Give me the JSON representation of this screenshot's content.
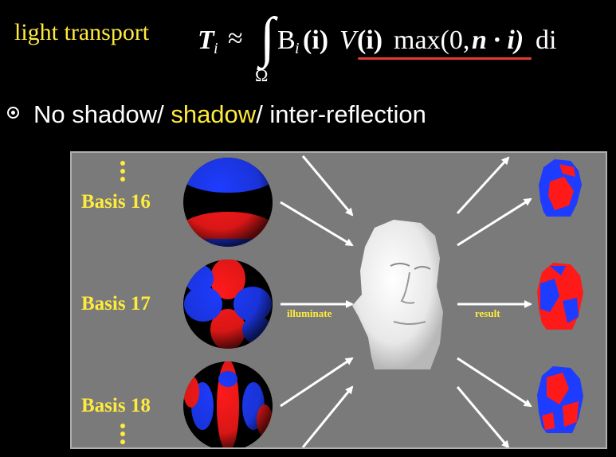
{
  "header": {
    "label": "light transport",
    "formula": {
      "lhs": "T",
      "lhs_sub": "i",
      "approx": "≈",
      "integral": "∫",
      "domain": "Ω",
      "b": "B",
      "b_sub": "i",
      "i_arg": "(i)",
      "v": "V",
      "v_arg": "(i)",
      "max": "max(0,",
      "n_dot": "n · i)",
      "di": "di"
    }
  },
  "bullet": {
    "part1": "No shadow/ ",
    "part2": "shadow",
    "part3": "/ inter-reflection"
  },
  "figure": {
    "basis_labels": [
      "Basis 16",
      "Basis 17",
      "Basis 18"
    ],
    "illuminate_label": "illuminate",
    "result_label": "result"
  },
  "colors": {
    "background": "#000000",
    "accent_yellow": "#ffeb3b",
    "underline_red": "#e53935",
    "panel_gray": "#7a7a7a"
  }
}
